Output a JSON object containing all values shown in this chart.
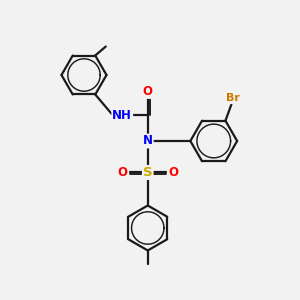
{
  "bg_color": "#f2f2f2",
  "bond_color": "#1a1a1a",
  "bond_width": 1.6,
  "atom_colors": {
    "N": "#0000ff",
    "O": "#ff0000",
    "S": "#ccaa00",
    "Br": "#cc7700",
    "C": "#1a1a1a"
  },
  "font_size": 8.5,
  "fig_size": [
    3.0,
    3.0
  ],
  "dpi": 100
}
